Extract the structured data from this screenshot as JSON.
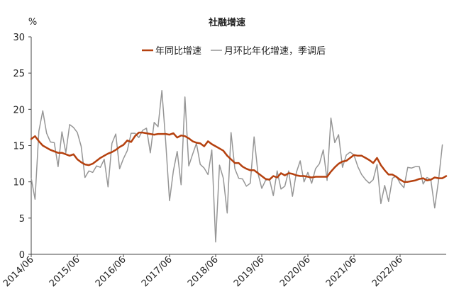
{
  "chart_data": {
    "type": "line",
    "title": "社融增速",
    "ylabel": "%",
    "xlabel": "",
    "ylim": [
      0,
      30
    ],
    "yticks": [
      "0",
      "5",
      "10",
      "15",
      "20",
      "25",
      "30"
    ],
    "xtick_labels": [
      "2014/06",
      "2015/06",
      "2016/06",
      "2017/06",
      "2018/06",
      "2019/06",
      "2020/06",
      "2021/06",
      "2022/06"
    ],
    "x_start": "2014-06",
    "x_end": "2022-06",
    "grid": false,
    "legend_position": "top-center",
    "series": [
      {
        "name": "年同比增速",
        "color": "#b5410f",
        "values": [
          15.9,
          16.3,
          15.6,
          15.0,
          14.7,
          14.4,
          14.2,
          14.0,
          14.0,
          13.8,
          13.6,
          13.8,
          13.1,
          12.7,
          12.4,
          12.3,
          12.5,
          12.9,
          13.3,
          13.6,
          13.9,
          14.1,
          14.4,
          14.8,
          15.1,
          15.7,
          15.5,
          16.3,
          16.8,
          16.8,
          16.7,
          16.6,
          16.5,
          16.6,
          16.6,
          16.6,
          16.5,
          16.7,
          16.1,
          16.4,
          16.3,
          16.0,
          15.6,
          15.4,
          15.3,
          14.9,
          15.6,
          15.2,
          14.9,
          14.6,
          14.3,
          13.6,
          13.1,
          12.6,
          12.6,
          12.1,
          11.8,
          11.6,
          11.6,
          11.2,
          10.8,
          10.4,
          10.3,
          10.8,
          10.6,
          11.2,
          10.9,
          11.2,
          11.1,
          10.9,
          10.8,
          10.8,
          10.7,
          10.6,
          10.7,
          10.7,
          10.7,
          10.7,
          11.4,
          12.0,
          12.5,
          12.8,
          12.9,
          13.3,
          13.7,
          13.6,
          13.6,
          13.3,
          13.0,
          12.6,
          13.3,
          12.3,
          11.6,
          11.0,
          11.0,
          10.7,
          10.3,
          10.0,
          10.0,
          10.1,
          10.2,
          10.4,
          10.5,
          10.2,
          10.3,
          10.6,
          10.5,
          10.5,
          10.8
        ]
      },
      {
        "name": "月环比年化增速，季调后",
        "color": "#969696",
        "values": [
          10.5,
          7.6,
          17.0,
          19.8,
          16.7,
          15.5,
          15.4,
          12.1,
          16.9,
          14.0,
          17.9,
          17.5,
          16.8,
          14.9,
          10.6,
          11.5,
          11.3,
          12.2,
          12.0,
          13.1,
          9.3,
          15.3,
          16.6,
          11.8,
          13.2,
          14.3,
          16.7,
          16.7,
          16.1,
          17.1,
          17.4,
          14.0,
          18.2,
          17.6,
          22.6,
          15.5,
          7.4,
          11.5,
          14.2,
          9.6,
          21.7,
          12.2,
          13.8,
          15.3,
          12.4,
          11.9,
          11.0,
          14.4,
          1.7,
          12.3,
          10.5,
          5.7,
          16.8,
          11.8,
          10.5,
          10.4,
          9.4,
          9.8,
          16.2,
          11.2,
          9.1,
          10.2,
          10.4,
          8.1,
          11.5,
          9.0,
          9.4,
          11.5,
          8.0,
          11.3,
          12.9,
          10.0,
          11.3,
          9.8,
          11.8,
          12.5,
          14.4,
          10.2,
          18.8,
          15.4,
          16.5,
          12.0,
          13.7,
          14.1,
          13.7,
          12.1,
          11.0,
          10.3,
          9.8,
          10.3,
          12.4,
          7.0,
          9.5,
          7.3,
          10.5,
          10.8,
          9.8,
          9.2,
          12.0,
          11.9,
          12.1,
          12.1,
          9.7,
          10.6,
          10.3,
          6.4,
          10.2,
          15.1
        ]
      }
    ]
  }
}
